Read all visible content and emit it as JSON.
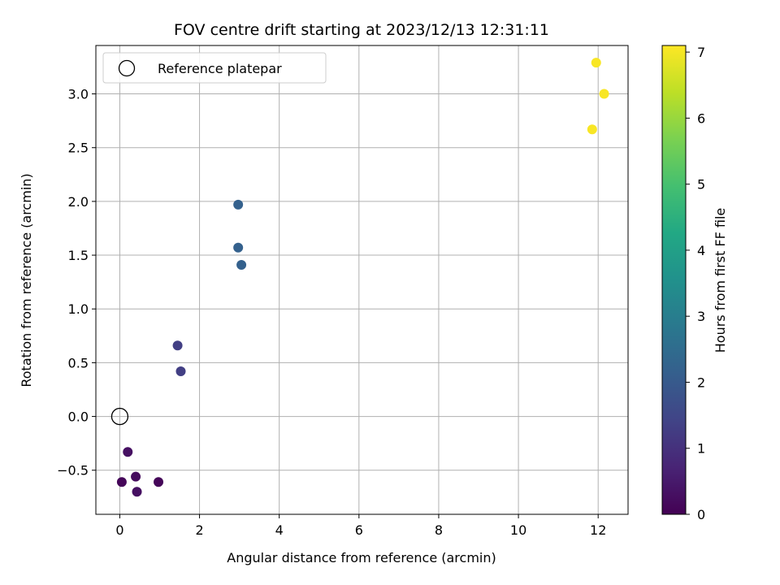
{
  "chart_data": {
    "type": "scatter",
    "title": "FOV centre drift starting at 2023/12/13 12:31:11",
    "xlabel": "Angular distance from reference (arcmin)",
    "ylabel": "Rotation from reference (arcmin)",
    "xlim": [
      -0.6,
      12.75
    ],
    "ylim": [
      -0.91,
      3.45
    ],
    "xticks": [
      0,
      2,
      4,
      6,
      8,
      10,
      12
    ],
    "yticks": [
      -0.5,
      0.0,
      0.5,
      1.0,
      1.5,
      2.0,
      2.5,
      3.0
    ],
    "xtick_labels": [
      "0",
      "2",
      "4",
      "6",
      "8",
      "10",
      "12"
    ],
    "ytick_labels": [
      "−0.5",
      "0.0",
      "0.5",
      "1.0",
      "1.5",
      "2.0",
      "2.5",
      "3.0"
    ],
    "grid": true,
    "colormap": "viridis",
    "colorbar": {
      "label": "Hours from first FF file",
      "range": [
        0,
        7.1
      ],
      "ticks": [
        0,
        1,
        2,
        3,
        4,
        5,
        6,
        7
      ],
      "tick_labels": [
        "0",
        "1",
        "2",
        "3",
        "4",
        "5",
        "6",
        "7"
      ]
    },
    "legend": {
      "position": "top-left",
      "entries": [
        {
          "label": "Reference platepar",
          "marker": "open-circle"
        }
      ]
    },
    "reference_point": {
      "x": 0,
      "y": 0
    },
    "points": [
      {
        "x": 0.05,
        "y": -0.61,
        "hours": 0.1
      },
      {
        "x": 0.2,
        "y": -0.33,
        "hours": 0.3
      },
      {
        "x": 0.4,
        "y": -0.56,
        "hours": 0.2
      },
      {
        "x": 0.43,
        "y": -0.7,
        "hours": 0.3
      },
      {
        "x": 0.97,
        "y": -0.61,
        "hours": 0.1
      },
      {
        "x": 1.45,
        "y": 0.66,
        "hours": 1.3
      },
      {
        "x": 1.53,
        "y": 0.42,
        "hours": 1.3
      },
      {
        "x": 2.97,
        "y": 1.97,
        "hours": 2.2
      },
      {
        "x": 2.97,
        "y": 1.57,
        "hours": 2.2
      },
      {
        "x": 3.05,
        "y": 1.41,
        "hours": 2.2
      },
      {
        "x": 11.85,
        "y": 2.67,
        "hours": 7.05
      },
      {
        "x": 11.95,
        "y": 3.29,
        "hours": 7.05
      },
      {
        "x": 12.15,
        "y": 3.0,
        "hours": 7.05
      }
    ]
  }
}
